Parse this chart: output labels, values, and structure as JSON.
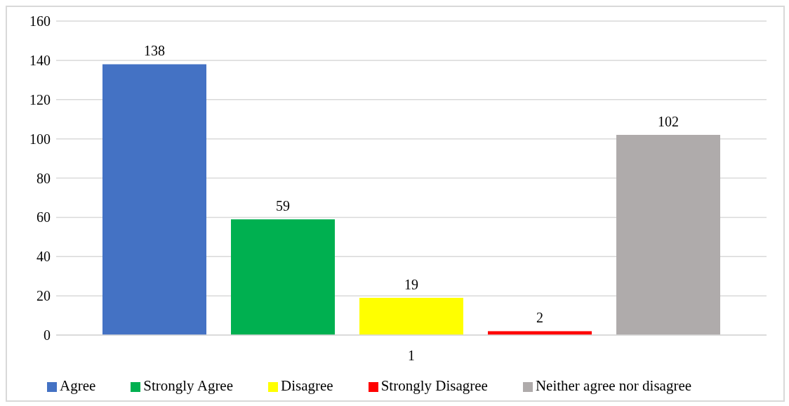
{
  "chart_data": {
    "type": "bar",
    "categories": [
      "1"
    ],
    "series": [
      {
        "name": "Agree",
        "color": "#4472c4",
        "values": [
          138
        ]
      },
      {
        "name": "Strongly Agree",
        "color": "#00b050",
        "values": [
          59
        ]
      },
      {
        "name": "Disagree",
        "color": "#ffff00",
        "values": [
          19
        ]
      },
      {
        "name": "Strongly Disagree",
        "color": "#ff0000",
        "values": [
          2
        ]
      },
      {
        "name": "Neither agree nor disagree",
        "color": "#afabab",
        "values": [
          102
        ]
      }
    ],
    "ylim": [
      0,
      160
    ],
    "yticks": [
      0,
      20,
      40,
      60,
      80,
      100,
      120,
      140,
      160
    ],
    "grid": "y",
    "legend": "bottom",
    "data_labels": true
  }
}
